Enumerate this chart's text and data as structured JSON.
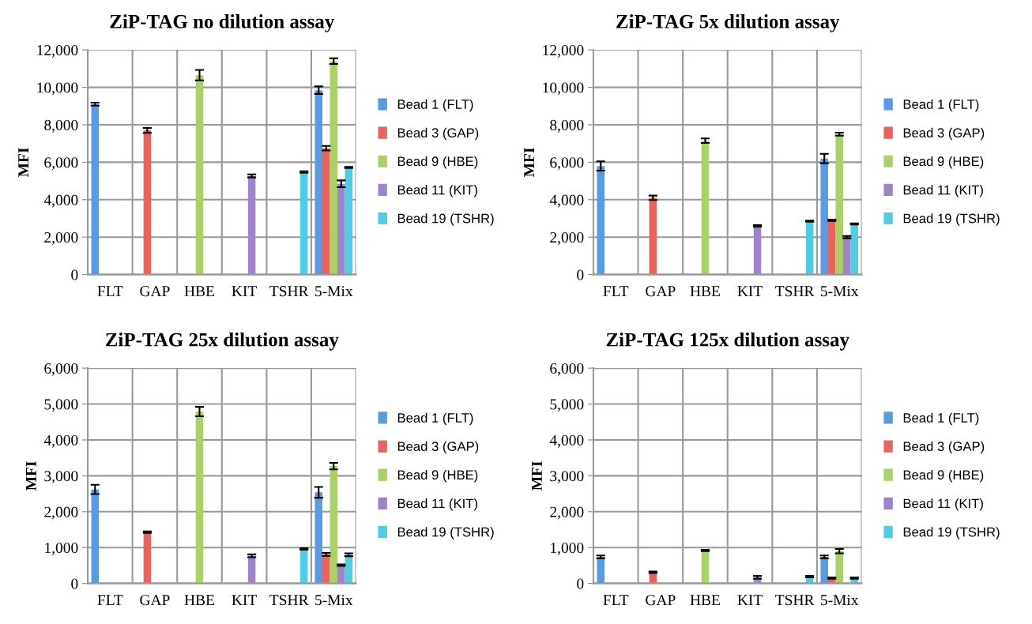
{
  "chart_data": [
    {
      "type": "bar",
      "title": "ZiP-TAG no dilution assay",
      "ylabel": "MFI",
      "categories": [
        "FLT",
        "GAP",
        "HBE",
        "KIT",
        "TSHR",
        "5-Mix"
      ],
      "ylim": [
        0,
        12000
      ],
      "yticks": [
        {
          "value": 0,
          "label": "0"
        },
        {
          "value": 2000,
          "label": "2,000"
        },
        {
          "value": 4000,
          "label": "4,000"
        },
        {
          "value": 6000,
          "label": "6,000"
        },
        {
          "value": 8000,
          "label": "8,000"
        },
        {
          "value": 10000,
          "label": "10,000"
        },
        {
          "value": 12000,
          "label": "12,000"
        }
      ],
      "grid": true,
      "legend": "right",
      "series": [
        {
          "name": "Bead 1 (FLT)",
          "color": "#5a9ae0",
          "values": [
            9100,
            null,
            null,
            null,
            null,
            9850
          ],
          "errors": [
            80,
            null,
            null,
            null,
            null,
            200
          ]
        },
        {
          "name": "Bead 3 (GAP)",
          "color": "#e8635e",
          "values": [
            null,
            7700,
            null,
            null,
            null,
            6750
          ],
          "errors": [
            null,
            130,
            null,
            null,
            null,
            120
          ]
        },
        {
          "name": "Bead 9 (HBE)",
          "color": "#a9d166",
          "values": [
            null,
            null,
            10650,
            null,
            null,
            11400
          ],
          "errors": [
            null,
            null,
            280,
            null,
            null,
            150
          ]
        },
        {
          "name": "Bead 11 (KIT)",
          "color": "#9f84c9",
          "values": [
            null,
            null,
            null,
            5270,
            null,
            4850
          ],
          "errors": [
            null,
            null,
            null,
            80,
            null,
            180
          ]
        },
        {
          "name": "Bead 19 (TSHR)",
          "color": "#4fcde3",
          "values": [
            null,
            null,
            null,
            null,
            5480,
            5720
          ],
          "errors": [
            null,
            null,
            null,
            null,
            40,
            30
          ]
        }
      ]
    },
    {
      "type": "bar",
      "title": "ZiP-TAG 5x dilution assay",
      "ylabel": "MFI",
      "categories": [
        "FLT",
        "GAP",
        "HBE",
        "KIT",
        "TSHR",
        "5-Mix"
      ],
      "ylim": [
        0,
        12000
      ],
      "yticks": [
        {
          "value": 0,
          "label": "0"
        },
        {
          "value": 2000,
          "label": "2,000"
        },
        {
          "value": 4000,
          "label": "4,000"
        },
        {
          "value": 6000,
          "label": "6,000"
        },
        {
          "value": 8000,
          "label": "8,000"
        },
        {
          "value": 10000,
          "label": "10,000"
        },
        {
          "value": 12000,
          "label": "12,000"
        }
      ],
      "grid": true,
      "legend": "right",
      "series": [
        {
          "name": "Bead 1 (FLT)",
          "color": "#5a9ae0",
          "values": [
            5800,
            null,
            null,
            null,
            null,
            6200
          ],
          "errors": [
            250,
            null,
            null,
            null,
            null,
            250
          ]
        },
        {
          "name": "Bead 3 (GAP)",
          "color": "#e8635e",
          "values": [
            null,
            4100,
            null,
            null,
            null,
            2900
          ],
          "errors": [
            null,
            120,
            null,
            null,
            null,
            40
          ]
        },
        {
          "name": "Bead 9 (HBE)",
          "color": "#a9d166",
          "values": [
            null,
            null,
            7150,
            null,
            null,
            7500
          ],
          "errors": [
            null,
            null,
            120,
            null,
            null,
            80
          ]
        },
        {
          "name": "Bead 11 (KIT)",
          "color": "#9f84c9",
          "values": [
            null,
            null,
            null,
            2600,
            null,
            2000
          ],
          "errors": [
            null,
            null,
            null,
            40,
            null,
            60
          ]
        },
        {
          "name": "Bead 19 (TSHR)",
          "color": "#4fcde3",
          "values": [
            null,
            null,
            null,
            null,
            2850,
            2700
          ],
          "errors": [
            null,
            null,
            null,
            null,
            30,
            30
          ]
        }
      ]
    },
    {
      "type": "bar",
      "title": "ZiP-TAG 25x dilution assay",
      "ylabel": "MFI",
      "categories": [
        "FLT",
        "GAP",
        "HBE",
        "KIT",
        "TSHR",
        "5-Mix"
      ],
      "ylim": [
        0,
        6000
      ],
      "yticks": [
        {
          "value": 0,
          "label": "0"
        },
        {
          "value": 1000,
          "label": "1,000"
        },
        {
          "value": 2000,
          "label": "2,000"
        },
        {
          "value": 3000,
          "label": "3,000"
        },
        {
          "value": 4000,
          "label": "4,000"
        },
        {
          "value": 5000,
          "label": "5,000"
        },
        {
          "value": 6000,
          "label": "6,000"
        }
      ],
      "grid": true,
      "legend": "right",
      "series": [
        {
          "name": "Bead 1 (FLT)",
          "color": "#5a9ae0",
          "values": [
            2620,
            null,
            null,
            null,
            null,
            2540
          ],
          "errors": [
            130,
            null,
            null,
            null,
            null,
            150
          ]
        },
        {
          "name": "Bead 3 (GAP)",
          "color": "#e8635e",
          "values": [
            null,
            1430,
            null,
            null,
            null,
            810
          ],
          "errors": [
            null,
            20,
            null,
            null,
            null,
            40
          ]
        },
        {
          "name": "Bead 9 (HBE)",
          "color": "#a9d166",
          "values": [
            null,
            null,
            4790,
            null,
            null,
            3270
          ],
          "errors": [
            null,
            null,
            130,
            null,
            null,
            90
          ]
        },
        {
          "name": "Bead 11 (KIT)",
          "color": "#9f84c9",
          "values": [
            null,
            null,
            null,
            770,
            null,
            510
          ],
          "errors": [
            null,
            null,
            null,
            40,
            null,
            20
          ]
        },
        {
          "name": "Bead 19 (TSHR)",
          "color": "#4fcde3",
          "values": [
            null,
            null,
            null,
            null,
            960,
            800
          ],
          "errors": [
            null,
            null,
            null,
            null,
            20,
            40
          ]
        }
      ]
    },
    {
      "type": "bar",
      "title": "ZiP-TAG 125x dilution assay",
      "ylabel": "MFI",
      "categories": [
        "FLT",
        "GAP",
        "HBE",
        "KIT",
        "TSHR",
        "5-Mix"
      ],
      "ylim": [
        0,
        6000
      ],
      "yticks": [
        {
          "value": 0,
          "label": "0"
        },
        {
          "value": 1000,
          "label": "1,000"
        },
        {
          "value": 2000,
          "label": "2,000"
        },
        {
          "value": 3000,
          "label": "3,000"
        },
        {
          "value": 4000,
          "label": "4,000"
        },
        {
          "value": 5000,
          "label": "5,000"
        },
        {
          "value": 6000,
          "label": "6,000"
        }
      ],
      "grid": true,
      "legend": "right",
      "series": [
        {
          "name": "Bead 1 (FLT)",
          "color": "#5a9ae0",
          "values": [
            740,
            null,
            null,
            null,
            null,
            740
          ],
          "errors": [
            40,
            null,
            null,
            null,
            null,
            40
          ]
        },
        {
          "name": "Bead 3 (GAP)",
          "color": "#e8635e",
          "values": [
            null,
            310,
            null,
            null,
            null,
            150
          ],
          "errors": [
            null,
            20,
            null,
            null,
            null,
            20
          ]
        },
        {
          "name": "Bead 9 (HBE)",
          "color": "#a9d166",
          "values": [
            null,
            null,
            920,
            null,
            null,
            900
          ],
          "errors": [
            null,
            null,
            20,
            null,
            null,
            60
          ]
        },
        {
          "name": "Bead 11 (KIT)",
          "color": "#9f84c9",
          "values": [
            null,
            null,
            null,
            170,
            null,
            null
          ],
          "errors": [
            null,
            null,
            null,
            40,
            null,
            null
          ]
        },
        {
          "name": "Bead 19 (TSHR)",
          "color": "#4fcde3",
          "values": [
            null,
            null,
            null,
            null,
            190,
            150
          ],
          "errors": [
            null,
            null,
            null,
            null,
            20,
            20
          ]
        }
      ]
    }
  ]
}
